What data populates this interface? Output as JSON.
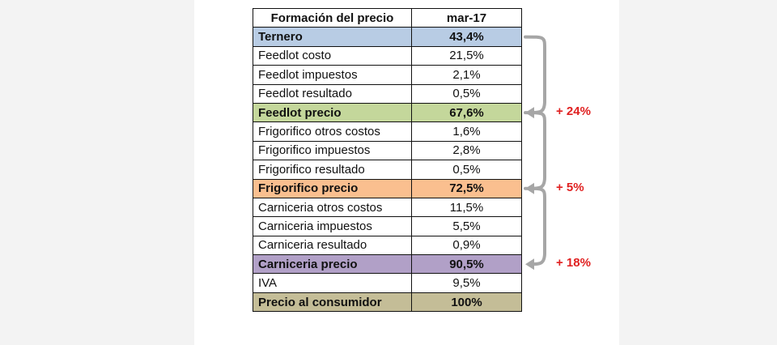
{
  "table": {
    "headers": [
      "Formación del precio",
      "mar-17"
    ],
    "rows": [
      {
        "label": "Ternero",
        "value": "43,4%",
        "bold": true,
        "color": "#b8cce4"
      },
      {
        "label": "Feedlot costo",
        "value": "21,5%",
        "bold": false,
        "color": ""
      },
      {
        "label": "Feedlot impuestos",
        "value": "2,1%",
        "bold": false,
        "color": ""
      },
      {
        "label": "Feedlot resultado",
        "value": "0,5%",
        "bold": false,
        "color": ""
      },
      {
        "label": "Feedlot precio",
        "value": "67,6%",
        "bold": true,
        "color": "#c4d79b"
      },
      {
        "label": "Frigorifico otros costos",
        "value": "1,6%",
        "bold": false,
        "color": ""
      },
      {
        "label": "Frigorifico impuestos",
        "value": "2,8%",
        "bold": false,
        "color": ""
      },
      {
        "label": "Frigorifico resultado",
        "value": "0,5%",
        "bold": false,
        "color": ""
      },
      {
        "label": "Frigorifico precio",
        "value": "72,5%",
        "bold": true,
        "color": "#fabf8f"
      },
      {
        "label": "Carniceria otros costos",
        "value": "11,5%",
        "bold": false,
        "color": ""
      },
      {
        "label": "Carniceria impuestos",
        "value": "5,5%",
        "bold": false,
        "color": ""
      },
      {
        "label": "Carniceria resultado",
        "value": "0,9%",
        "bold": false,
        "color": ""
      },
      {
        "label": "Carniceria precio",
        "value": "90,5%",
        "bold": true,
        "color": "#b1a0c7"
      },
      {
        "label": "IVA",
        "value": "9,5%",
        "bold": false,
        "color": ""
      },
      {
        "label": "Precio al consumidor",
        "value": "100%",
        "bold": true,
        "color": "#c4bd97"
      }
    ]
  },
  "increments": [
    {
      "text": "+ 24%",
      "from_row": 0,
      "to_row": 4
    },
    {
      "text": "+ 5%",
      "from_row": 4,
      "to_row": 8
    },
    {
      "text": "+ 18%",
      "from_row": 8,
      "to_row": 12
    }
  ],
  "colors": {
    "increment_text": "#e02020",
    "arrow": "#a6a6a6"
  }
}
